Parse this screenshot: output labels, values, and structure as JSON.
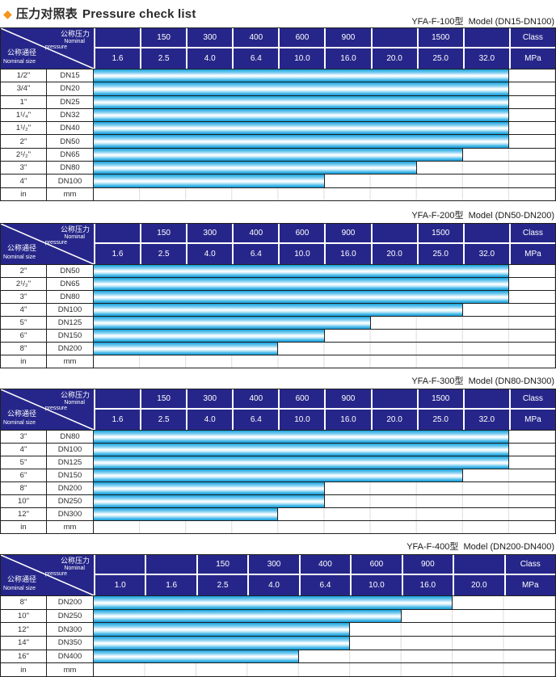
{
  "page_title": {
    "diamond_icon": "◆",
    "zh": "压力对照表",
    "en": "Pressure check list"
  },
  "header_cell": {
    "pressure_zh": "公称压力",
    "pressure_en1": "Nominal",
    "pressure_en2": "pressure",
    "size_zh": "公称通径",
    "size_en": "Nominal size"
  },
  "colors": {
    "header_navy": "#26268a",
    "bar_cyan": "#29ace2",
    "diamond_orange": "#f7941d",
    "grid_dark": "#1f1f1f"
  },
  "tables": [
    {
      "model_label": "YFA-F-100型  Model (DN15-DN100)",
      "class_row": [
        "",
        "150",
        "300",
        "400",
        "600",
        "900",
        "",
        "1500",
        "",
        "Class"
      ],
      "mpa_row": [
        "1.6",
        "2.5",
        "4.0",
        "6.4",
        "10.0",
        "16.0",
        "20.0",
        "25.0",
        "32.0",
        "MPa"
      ],
      "rows": [
        {
          "inch": "1/2\"",
          "dn": "DN15",
          "bar_cols": 9
        },
        {
          "inch": "3/4\"",
          "dn": "DN20",
          "bar_cols": 9
        },
        {
          "inch": "1\"",
          "dn": "DN25",
          "bar_cols": 9
        },
        {
          "inch": "1¹/₄\"",
          "dn": "DN32",
          "bar_cols": 9
        },
        {
          "inch": "1¹/₂\"",
          "dn": "DN40",
          "bar_cols": 9
        },
        {
          "inch": "2\"",
          "dn": "DN50",
          "bar_cols": 9
        },
        {
          "inch": "2¹/₂\"",
          "dn": "DN65",
          "bar_cols": 8
        },
        {
          "inch": "3\"",
          "dn": "DN80",
          "bar_cols": 7
        },
        {
          "inch": "4\"",
          "dn": "DN100",
          "bar_cols": 5
        },
        {
          "inch": "in",
          "dn": "mm",
          "bar_cols": 0
        }
      ]
    },
    {
      "model_label": "YFA-F-200型  Model (DN50-DN200)",
      "class_row": [
        "",
        "150",
        "300",
        "400",
        "600",
        "900",
        "",
        "1500",
        "",
        "Class"
      ],
      "mpa_row": [
        "1.6",
        "2.5",
        "4.0",
        "6.4",
        "10.0",
        "16.0",
        "20.0",
        "25.0",
        "32.0",
        "MPa"
      ],
      "rows": [
        {
          "inch": "2\"",
          "dn": "DN50",
          "bar_cols": 9
        },
        {
          "inch": "2¹/₂\"",
          "dn": "DN65",
          "bar_cols": 9
        },
        {
          "inch": "3\"",
          "dn": "DN80",
          "bar_cols": 9
        },
        {
          "inch": "4\"",
          "dn": "DN100",
          "bar_cols": 8
        },
        {
          "inch": "5\"",
          "dn": "DN125",
          "bar_cols": 6
        },
        {
          "inch": "6\"",
          "dn": "DN150",
          "bar_cols": 5
        },
        {
          "inch": "8\"",
          "dn": "DN200",
          "bar_cols": 4
        },
        {
          "inch": "in",
          "dn": "mm",
          "bar_cols": 0
        }
      ]
    },
    {
      "model_label": "YFA-F-300型  Model (DN80-DN300)",
      "class_row": [
        "",
        "150",
        "300",
        "400",
        "600",
        "900",
        "",
        "1500",
        "",
        "Class"
      ],
      "mpa_row": [
        "1.6",
        "2.5",
        "4.0",
        "6.4",
        "10.0",
        "16.0",
        "20.0",
        "25.0",
        "32.0",
        "MPa"
      ],
      "rows": [
        {
          "inch": "3\"",
          "dn": "DN80",
          "bar_cols": 9
        },
        {
          "inch": "4\"",
          "dn": "DN100",
          "bar_cols": 9
        },
        {
          "inch": "5\"",
          "dn": "DN125",
          "bar_cols": 9
        },
        {
          "inch": "6\"",
          "dn": "DN150",
          "bar_cols": 8
        },
        {
          "inch": "8\"",
          "dn": "DN200",
          "bar_cols": 5
        },
        {
          "inch": "10\"",
          "dn": "DN250",
          "bar_cols": 5
        },
        {
          "inch": "12\"",
          "dn": "DN300",
          "bar_cols": 4
        },
        {
          "inch": "in",
          "dn": "mm",
          "bar_cols": 0
        }
      ]
    },
    {
      "model_label": "YFA-F-400型  Model (DN200-DN400)",
      "class_row": [
        "",
        "",
        "150",
        "300",
        "400",
        "600",
        "900",
        "",
        "Class"
      ],
      "mpa_row": [
        "1.0",
        "1.6",
        "2.5",
        "4.0",
        "6.4",
        "10.0",
        "16.0",
        "20.0",
        "MPa"
      ],
      "rows": [
        {
          "inch": "8\"",
          "dn": "DN200",
          "bar_cols": 7
        },
        {
          "inch": "10\"",
          "dn": "DN250",
          "bar_cols": 6
        },
        {
          "inch": "12\"",
          "dn": "DN300",
          "bar_cols": 5
        },
        {
          "inch": "14\"",
          "dn": "DN350",
          "bar_cols": 5
        },
        {
          "inch": "16\"",
          "dn": "DN400",
          "bar_cols": 4
        },
        {
          "inch": "in",
          "dn": "mm",
          "bar_cols": 0
        }
      ]
    }
  ]
}
